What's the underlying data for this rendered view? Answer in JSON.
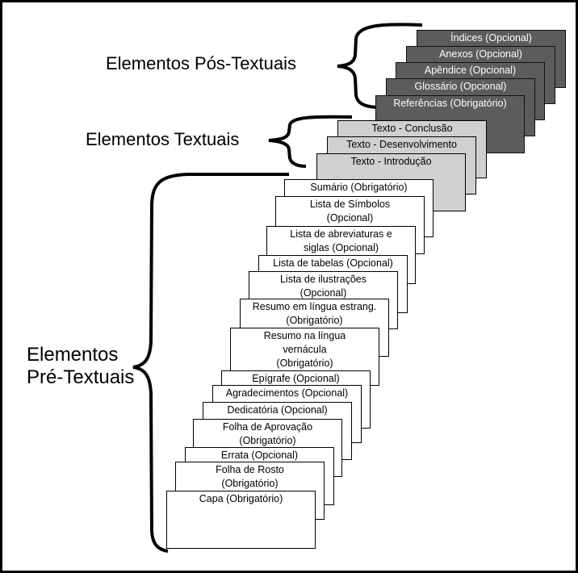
{
  "groups": {
    "pos": "Elementos Pós-Textuais",
    "textuais": "Elementos Textuais",
    "pre_line1": "Elementos",
    "pre_line2": "Pré-Textuais"
  },
  "colors": {
    "pos": "#5c5c5c",
    "textuais": "#d0d0d0",
    "pre": "#ffffff"
  },
  "pos_textuais": [
    {
      "l1": "Índices (Opcional)"
    },
    {
      "l1": "Anexos (Opcional)"
    },
    {
      "l1": "Apêndice (Opcional)"
    },
    {
      "l1": "Glossário (Opcional)"
    },
    {
      "l1": "Referências (Obrigatório)"
    }
  ],
  "textuais": [
    {
      "l1": "Texto - Conclusão"
    },
    {
      "l1": "Texto - Desenvolvimento"
    },
    {
      "l1": "Texto - Introdução"
    }
  ],
  "pre_textuais": [
    {
      "l1": "Sumário (Obrigatório)"
    },
    {
      "l1": "Lista de Símbolos",
      "l2": "(Opcional)"
    },
    {
      "l1": "Lista de abreviaturas e",
      "l2": "siglas (Opcional)"
    },
    {
      "l1": "Lista de tabelas (Opcional)"
    },
    {
      "l1": "Lista de ilustrações",
      "l2": "(Opcional)"
    },
    {
      "l1": "Resumo em língua estrang.",
      "l2": "(Obrigatório)"
    },
    {
      "l1": "Resumo na língua",
      "l2": "vernácula",
      "l3": "(Obrigatório)"
    },
    {
      "l1": "Epígrafe (Opcional)"
    },
    {
      "l1": "Agradecimentos (Opcional)"
    },
    {
      "l1": "Dedicatória (Opcional)"
    },
    {
      "l1": "Folha de Aprovação",
      "l2": "(Obrigatório)"
    },
    {
      "l1": "Errata (Opcional)"
    },
    {
      "l1": "Folha de Rosto",
      "l2": "(Obrigatório)"
    },
    {
      "l1": "Capa (Obrigatório)"
    }
  ]
}
